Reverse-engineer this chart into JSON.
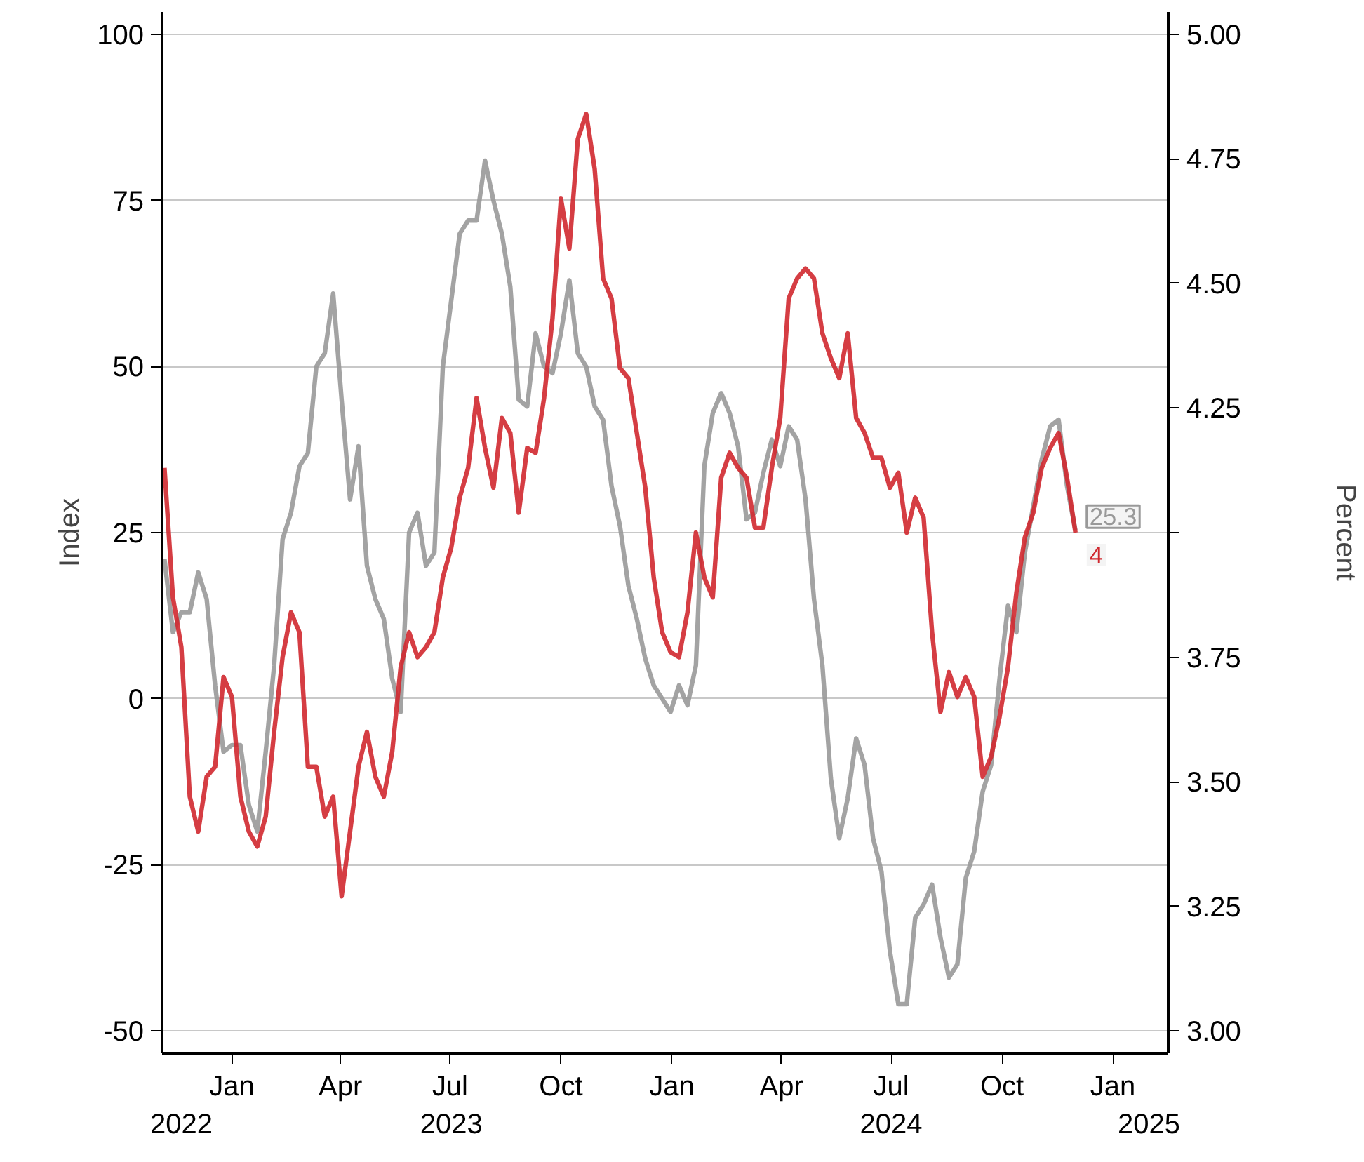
{
  "chart_data": {
    "type": "line",
    "ylabel": "Index",
    "y2label": "Percent",
    "x": [
      "2022-11-06",
      "2022-11-13",
      "2022-11-20",
      "2022-11-27",
      "2022-12-04",
      "2022-12-11",
      "2022-12-18",
      "2022-12-25",
      "2023-01-01",
      "2023-01-08",
      "2023-01-15",
      "2023-01-22",
      "2023-01-29",
      "2023-02-05",
      "2023-02-12",
      "2023-02-19",
      "2023-02-26",
      "2023-03-05",
      "2023-03-12",
      "2023-03-19",
      "2023-03-26",
      "2023-04-02",
      "2023-04-09",
      "2023-04-16",
      "2023-04-23",
      "2023-04-30",
      "2023-05-07",
      "2023-05-14",
      "2023-05-21",
      "2023-05-28",
      "2023-06-04",
      "2023-06-11",
      "2023-06-18",
      "2023-06-25",
      "2023-07-02",
      "2023-07-09",
      "2023-07-16",
      "2023-07-23",
      "2023-07-30",
      "2023-08-06",
      "2023-08-13",
      "2023-08-20",
      "2023-08-27",
      "2023-09-03",
      "2023-09-10",
      "2023-09-17",
      "2023-09-24",
      "2023-10-01",
      "2023-10-08",
      "2023-10-15",
      "2023-10-22",
      "2023-10-29",
      "2023-11-05",
      "2023-11-12",
      "2023-11-19",
      "2023-11-26",
      "2023-12-03",
      "2023-12-10",
      "2023-12-17",
      "2023-12-24",
      "2023-12-31",
      "2024-01-07",
      "2024-01-14",
      "2024-01-21",
      "2024-01-28",
      "2024-02-04",
      "2024-02-11",
      "2024-02-18",
      "2024-02-25",
      "2024-03-03",
      "2024-03-10",
      "2024-03-17",
      "2024-03-24",
      "2024-03-31",
      "2024-04-07",
      "2024-04-14",
      "2024-04-21",
      "2024-04-28",
      "2024-05-05",
      "2024-05-12",
      "2024-05-19",
      "2024-05-26",
      "2024-06-02",
      "2024-06-09",
      "2024-06-16",
      "2024-06-23",
      "2024-06-30",
      "2024-07-07",
      "2024-07-14",
      "2024-07-21",
      "2024-07-28",
      "2024-08-04",
      "2024-08-11",
      "2024-08-18",
      "2024-08-25",
      "2024-09-01",
      "2024-09-08",
      "2024-09-15",
      "2024-09-22",
      "2024-09-29",
      "2024-10-06",
      "2024-10-13",
      "2024-10-20",
      "2024-10-27",
      "2024-11-03",
      "2024-11-10",
      "2024-11-17",
      "2024-11-24",
      "2024-12-01"
    ],
    "series": [
      {
        "color": "#999999",
        "values": [
          21,
          10,
          13,
          13,
          19,
          15,
          2,
          -8,
          -7,
          -7,
          -16,
          -20,
          -8,
          5,
          24,
          28,
          35,
          37,
          50,
          52,
          61,
          45,
          30,
          38,
          20,
          15,
          12,
          3,
          -2,
          25,
          28,
          20,
          22,
          50,
          60,
          70,
          72,
          72,
          81,
          75,
          70,
          62,
          45,
          44,
          55,
          50,
          49,
          55,
          63,
          52,
          50,
          44,
          42,
          32,
          26,
          17,
          12,
          6,
          2,
          0,
          -2,
          2,
          -1,
          5,
          35,
          43,
          46,
          43,
          38,
          27,
          28,
          34,
          39,
          35,
          41,
          39,
          30,
          15,
          5,
          -12,
          -21,
          -15,
          -6,
          -10,
          -21,
          -26,
          -38,
          -46,
          -46,
          -33,
          -31,
          -28,
          -36,
          -42,
          -40,
          -27,
          -23,
          -14,
          -10,
          3,
          14,
          10,
          22,
          29,
          36,
          41,
          42,
          32,
          25.3
        ],
        "value_labels": [
          null,
          null,
          null,
          null,
          null,
          null,
          null,
          null,
          null,
          null,
          null,
          null,
          null,
          null,
          null,
          null,
          null,
          null,
          null,
          null,
          null,
          null,
          null,
          null,
          null,
          null,
          null,
          null,
          null,
          null,
          null,
          null,
          null,
          null,
          null,
          null,
          null,
          null,
          null,
          null,
          null,
          null,
          null,
          null,
          null,
          null,
          null,
          null,
          null,
          null,
          null,
          null,
          null,
          null,
          null,
          null,
          null,
          null,
          null,
          null,
          null,
          null,
          null,
          null,
          null,
          null,
          null,
          null,
          null,
          null,
          null,
          null,
          null,
          null,
          null,
          null,
          null,
          null,
          null,
          null,
          null,
          null,
          null,
          null,
          null,
          null,
          null,
          null,
          null,
          null,
          null,
          null,
          null,
          null,
          null,
          null,
          null,
          null,
          null,
          null,
          null,
          null,
          null,
          null,
          null,
          null,
          null,
          null,
          "25.3"
        ]
      },
      {
        "color": "#d0282f",
        "axis": "y2",
        "values": [
          4.13,
          3.87,
          3.77,
          3.47,
          3.4,
          3.51,
          3.53,
          3.71,
          3.67,
          3.47,
          3.4,
          3.37,
          3.43,
          3.6,
          3.75,
          3.84,
          3.8,
          3.53,
          3.53,
          3.43,
          3.47,
          3.27,
          3.4,
          3.53,
          3.6,
          3.51,
          3.47,
          3.56,
          3.73,
          3.8,
          3.75,
          3.77,
          3.8,
          3.91,
          3.97,
          4.07,
          4.13,
          4.27,
          4.17,
          4.09,
          4.23,
          4.2,
          4.04,
          4.17,
          4.16,
          4.27,
          4.43,
          4.67,
          4.57,
          4.79,
          4.84,
          4.73,
          4.51,
          4.47,
          4.33,
          4.31,
          4.2,
          4.09,
          3.91,
          3.8,
          3.76,
          3.75,
          3.84,
          4.0,
          3.91,
          3.87,
          4.11,
          4.16,
          4.13,
          4.11,
          4.01,
          4.01,
          4.13,
          4.23,
          4.47,
          4.51,
          4.53,
          4.51,
          4.4,
          4.35,
          4.31,
          4.4,
          4.23,
          4.2,
          4.15,
          4.15,
          4.09,
          4.12,
          4.0,
          4.07,
          4.03,
          3.8,
          3.64,
          3.72,
          3.67,
          3.71,
          3.67,
          3.51,
          3.55,
          3.63,
          3.73,
          3.88,
          3.99,
          4.04,
          4.13,
          4.17,
          4.2,
          4.11,
          4
        ],
        "value_labels": [
          null,
          null,
          null,
          null,
          null,
          null,
          null,
          null,
          null,
          null,
          null,
          null,
          null,
          null,
          null,
          null,
          null,
          null,
          null,
          null,
          null,
          null,
          null,
          null,
          null,
          null,
          null,
          null,
          null,
          null,
          null,
          null,
          null,
          null,
          null,
          null,
          null,
          null,
          null,
          null,
          null,
          null,
          null,
          null,
          null,
          null,
          null,
          null,
          null,
          null,
          null,
          null,
          null,
          null,
          null,
          null,
          null,
          null,
          null,
          null,
          null,
          null,
          null,
          null,
          null,
          null,
          null,
          null,
          null,
          null,
          null,
          null,
          null,
          null,
          null,
          null,
          null,
          null,
          null,
          null,
          null,
          null,
          null,
          null,
          null,
          null,
          null,
          null,
          null,
          null,
          null,
          null,
          null,
          null,
          null,
          null,
          null,
          null,
          null,
          null,
          null,
          null,
          null,
          null,
          null,
          null,
          null,
          null,
          "4"
        ]
      }
    ],
    "xlim": [
      "2022-11-04",
      "2025-02-16"
    ],
    "xticks": [
      {
        "value": "2023-01-01",
        "label": "Jan"
      },
      {
        "value": "2023-04-01",
        "label": "Apr"
      },
      {
        "value": "2023-07-01",
        "label": "Jul"
      },
      {
        "value": "2023-10-01",
        "label": "Oct"
      },
      {
        "value": "2024-01-01",
        "label": "Jan"
      },
      {
        "value": "2024-04-01",
        "label": "Apr"
      },
      {
        "value": "2024-07-01",
        "label": "Jul"
      },
      {
        "value": "2024-10-01",
        "label": "Oct"
      },
      {
        "value": "2025-01-01",
        "label": "Jan"
      }
    ],
    "x2lim": [
      "2022-11-04",
      "2025-02-16"
    ],
    "x2ticks": [
      {
        "value": "2022-11-20",
        "label": "2022"
      },
      {
        "value": "2023-07-02",
        "label": "2023"
      },
      {
        "value": "2024-07-01",
        "label": "2024"
      },
      {
        "value": "2025-01-31",
        "label": "2025"
      }
    ],
    "ylim": [
      -53.4,
      103.4
    ],
    "yticks": [
      -50,
      -25,
      0,
      25,
      50,
      75,
      100
    ],
    "y2lim": [
      2.955,
      5.045
    ],
    "y2ticks": [
      {
        "value": 3,
        "label": "3.00"
      },
      {
        "value": 3.25,
        "label": "3.25"
      },
      {
        "value": 3.5,
        "label": "3.50"
      },
      {
        "value": 3.75,
        "label": "3.75"
      },
      {
        "value": 4,
        "label": null
      },
      {
        "value": 4.25,
        "label": "4.25"
      },
      {
        "value": 4.5,
        "label": "4.50"
      },
      {
        "value": 4.75,
        "label": "4.75"
      },
      {
        "value": 5,
        "label": "5.00"
      }
    ],
    "grid": "y",
    "line_style": "solid",
    "marker": "none"
  }
}
